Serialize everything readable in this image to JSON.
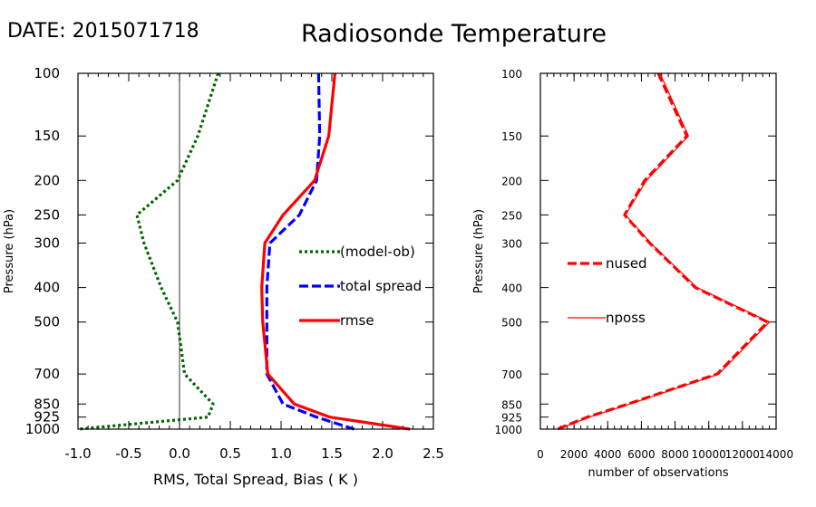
{
  "date_label": "DATE: 2015071718",
  "title": "Radiosonde Temperature",
  "chart_data": [
    {
      "type": "line",
      "xlabel": "RMS, Total Spread, Bias ( K )",
      "ylabel": "Pressure (hPa)",
      "xlim": [
        -1.0,
        2.5
      ],
      "xticks": [
        -1.0,
        -0.5,
        0.0,
        0.5,
        1.0,
        1.5,
        2.0,
        2.5
      ],
      "xtick_labels": [
        "-1.0",
        "-0.5",
        "0.0",
        "0.5",
        "1.0",
        "1.5",
        "2.0",
        "2.5"
      ],
      "ylim": [
        1000,
        100
      ],
      "yscale": "log",
      "y_reversed": true,
      "yticks": [
        100,
        150,
        200,
        250,
        300,
        400,
        500,
        700,
        850,
        925,
        1000
      ],
      "ytick_labels": [
        "100",
        "150",
        "200",
        "250",
        "300",
        "400",
        "500",
        "700",
        "850",
        "925",
        "1000"
      ],
      "zero_line": true,
      "legend_position": "center-right",
      "y": [
        100,
        150,
        200,
        250,
        300,
        400,
        500,
        700,
        850,
        925,
        1000
      ],
      "series": [
        {
          "name": "(model-ob)",
          "color": "#006400",
          "style": "dotted",
          "values": [
            0.38,
            0.18,
            -0.02,
            -0.42,
            -0.35,
            -0.18,
            -0.02,
            0.05,
            0.33,
            0.28,
            -1.0
          ]
        },
        {
          "name": "total spread",
          "color": "#0000ff",
          "style": "dashed",
          "values": [
            1.37,
            1.38,
            1.35,
            1.18,
            0.89,
            0.86,
            0.86,
            0.86,
            1.02,
            1.35,
            1.72
          ]
        },
        {
          "name": "rmse",
          "color": "#ff0000",
          "style": "solid",
          "values": [
            1.53,
            1.47,
            1.33,
            1.02,
            0.84,
            0.81,
            0.82,
            0.87,
            1.13,
            1.48,
            2.27
          ]
        }
      ]
    },
    {
      "type": "line",
      "xlabel": "number of observations",
      "ylabel": "Pressure (hPa)",
      "xlim": [
        0,
        14000
      ],
      "xticks": [
        0,
        2000,
        4000,
        6000,
        8000,
        10000,
        12000,
        14000
      ],
      "xtick_labels": [
        "0",
        "2000",
        "4000",
        "6000",
        "8000",
        "10000",
        "12000",
        "14000"
      ],
      "ylim": [
        1000,
        100
      ],
      "yscale": "log",
      "y_reversed": true,
      "yticks": [
        100,
        150,
        200,
        250,
        300,
        400,
        500,
        700,
        850,
        925,
        1000
      ],
      "ytick_labels": [
        "100",
        "150",
        "200",
        "250",
        "300",
        "400",
        "500",
        "700",
        "850",
        "925",
        "1000"
      ],
      "legend_position": "center-left",
      "y": [
        100,
        150,
        200,
        250,
        300,
        400,
        500,
        700,
        850,
        925,
        1000
      ],
      "series": [
        {
          "name": "nused",
          "color": "#ff0000",
          "style": "dashed",
          "values": [
            7000,
            8700,
            6200,
            5000,
            6500,
            9200,
            13500,
            10500,
            5200,
            2800,
            1000
          ]
        },
        {
          "name": "nposs",
          "color": "#ff0000",
          "style": "thin",
          "values": [
            7100,
            8800,
            6300,
            5050,
            6550,
            9300,
            13600,
            10600,
            5300,
            2900,
            1050
          ]
        }
      ]
    }
  ]
}
